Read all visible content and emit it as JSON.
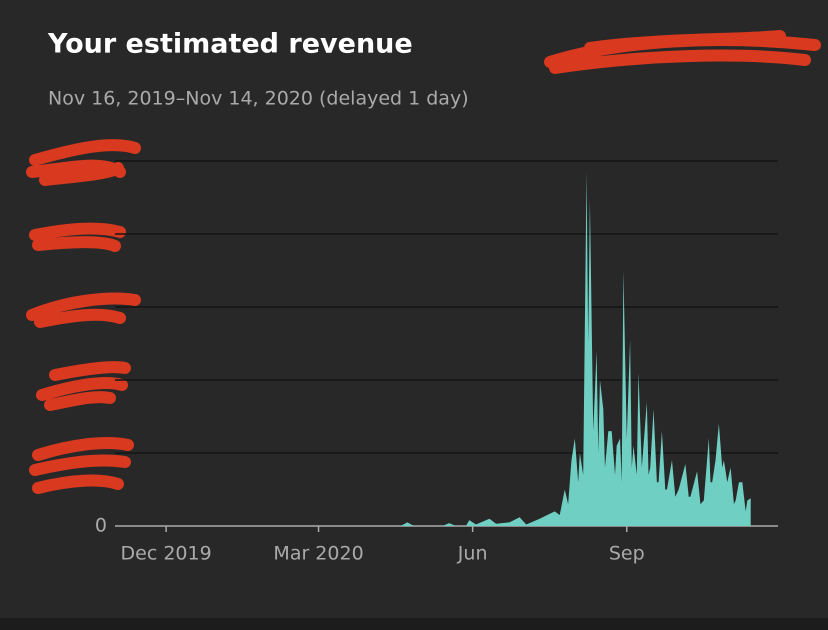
{
  "chart_data": {
    "type": "area",
    "title": "Your estimated revenue",
    "subtitle": "Nov 16, 2019–Nov 14, 2020 (delayed 1 day)",
    "color": "#6fcfc2",
    "x": [
      0,
      155,
      159,
      163,
      180,
      184,
      188,
      194,
      196,
      200,
      208,
      212,
      220,
      226,
      230,
      238,
      247,
      250,
      253,
      255,
      257,
      259,
      261,
      262,
      264,
      266,
      267,
      268,
      270,
      272,
      273,
      274,
      276,
      277,
      279,
      281,
      283,
      284,
      286,
      287,
      288,
      290,
      292,
      293,
      294,
      296,
      297,
      299,
      302,
      303,
      304,
      306,
      308,
      309,
      311,
      313,
      314,
      317,
      319,
      321,
      325,
      327,
      328,
      332,
      334,
      336,
      339,
      340,
      341,
      343,
      345,
      347,
      348,
      350,
      352,
      354,
      355,
      357,
      359,
      361,
      362,
      364
    ],
    "values": [
      0,
      0,
      0.05,
      0,
      0,
      0.04,
      0,
      0,
      0.08,
      0.02,
      0.1,
      0.03,
      0.05,
      0.12,
      0.02,
      0.1,
      0.2,
      0.15,
      0.5,
      0.3,
      0.9,
      1.2,
      0.6,
      1.0,
      0.7,
      4.85,
      2.5,
      4.47,
      1.3,
      2.4,
      1.0,
      2.0,
      1.6,
      0.8,
      1.3,
      1.3,
      0.7,
      1.1,
      1.2,
      0.6,
      3.5,
      1.2,
      2.55,
      0.8,
      1.1,
      0.7,
      2.1,
      0.8,
      1.7,
      0.7,
      0.8,
      1.6,
      0.6,
      0.6,
      1.3,
      0.5,
      0.5,
      0.9,
      0.4,
      0.5,
      0.85,
      0.4,
      0.4,
      0.75,
      0.3,
      0.35,
      1.2,
      0.6,
      0.6,
      0.9,
      1.4,
      0.8,
      0.9,
      0.6,
      0.8,
      0.3,
      0.35,
      0.6,
      0.6,
      0.2,
      0.35,
      0.38
    ],
    "xlim": [
      0,
      364
    ],
    "xticks": [
      {
        "value": 15,
        "label": "Dec 2019"
      },
      {
        "value": 106,
        "label": "Mar 2020"
      },
      {
        "value": 198,
        "label": "Jun"
      },
      {
        "value": 290,
        "label": "Sep"
      }
    ],
    "ylim": [
      0,
      5
    ],
    "yticks": [
      0
    ],
    "ygrid": [
      1,
      2,
      3,
      4,
      5
    ],
    "grid": true
  }
}
